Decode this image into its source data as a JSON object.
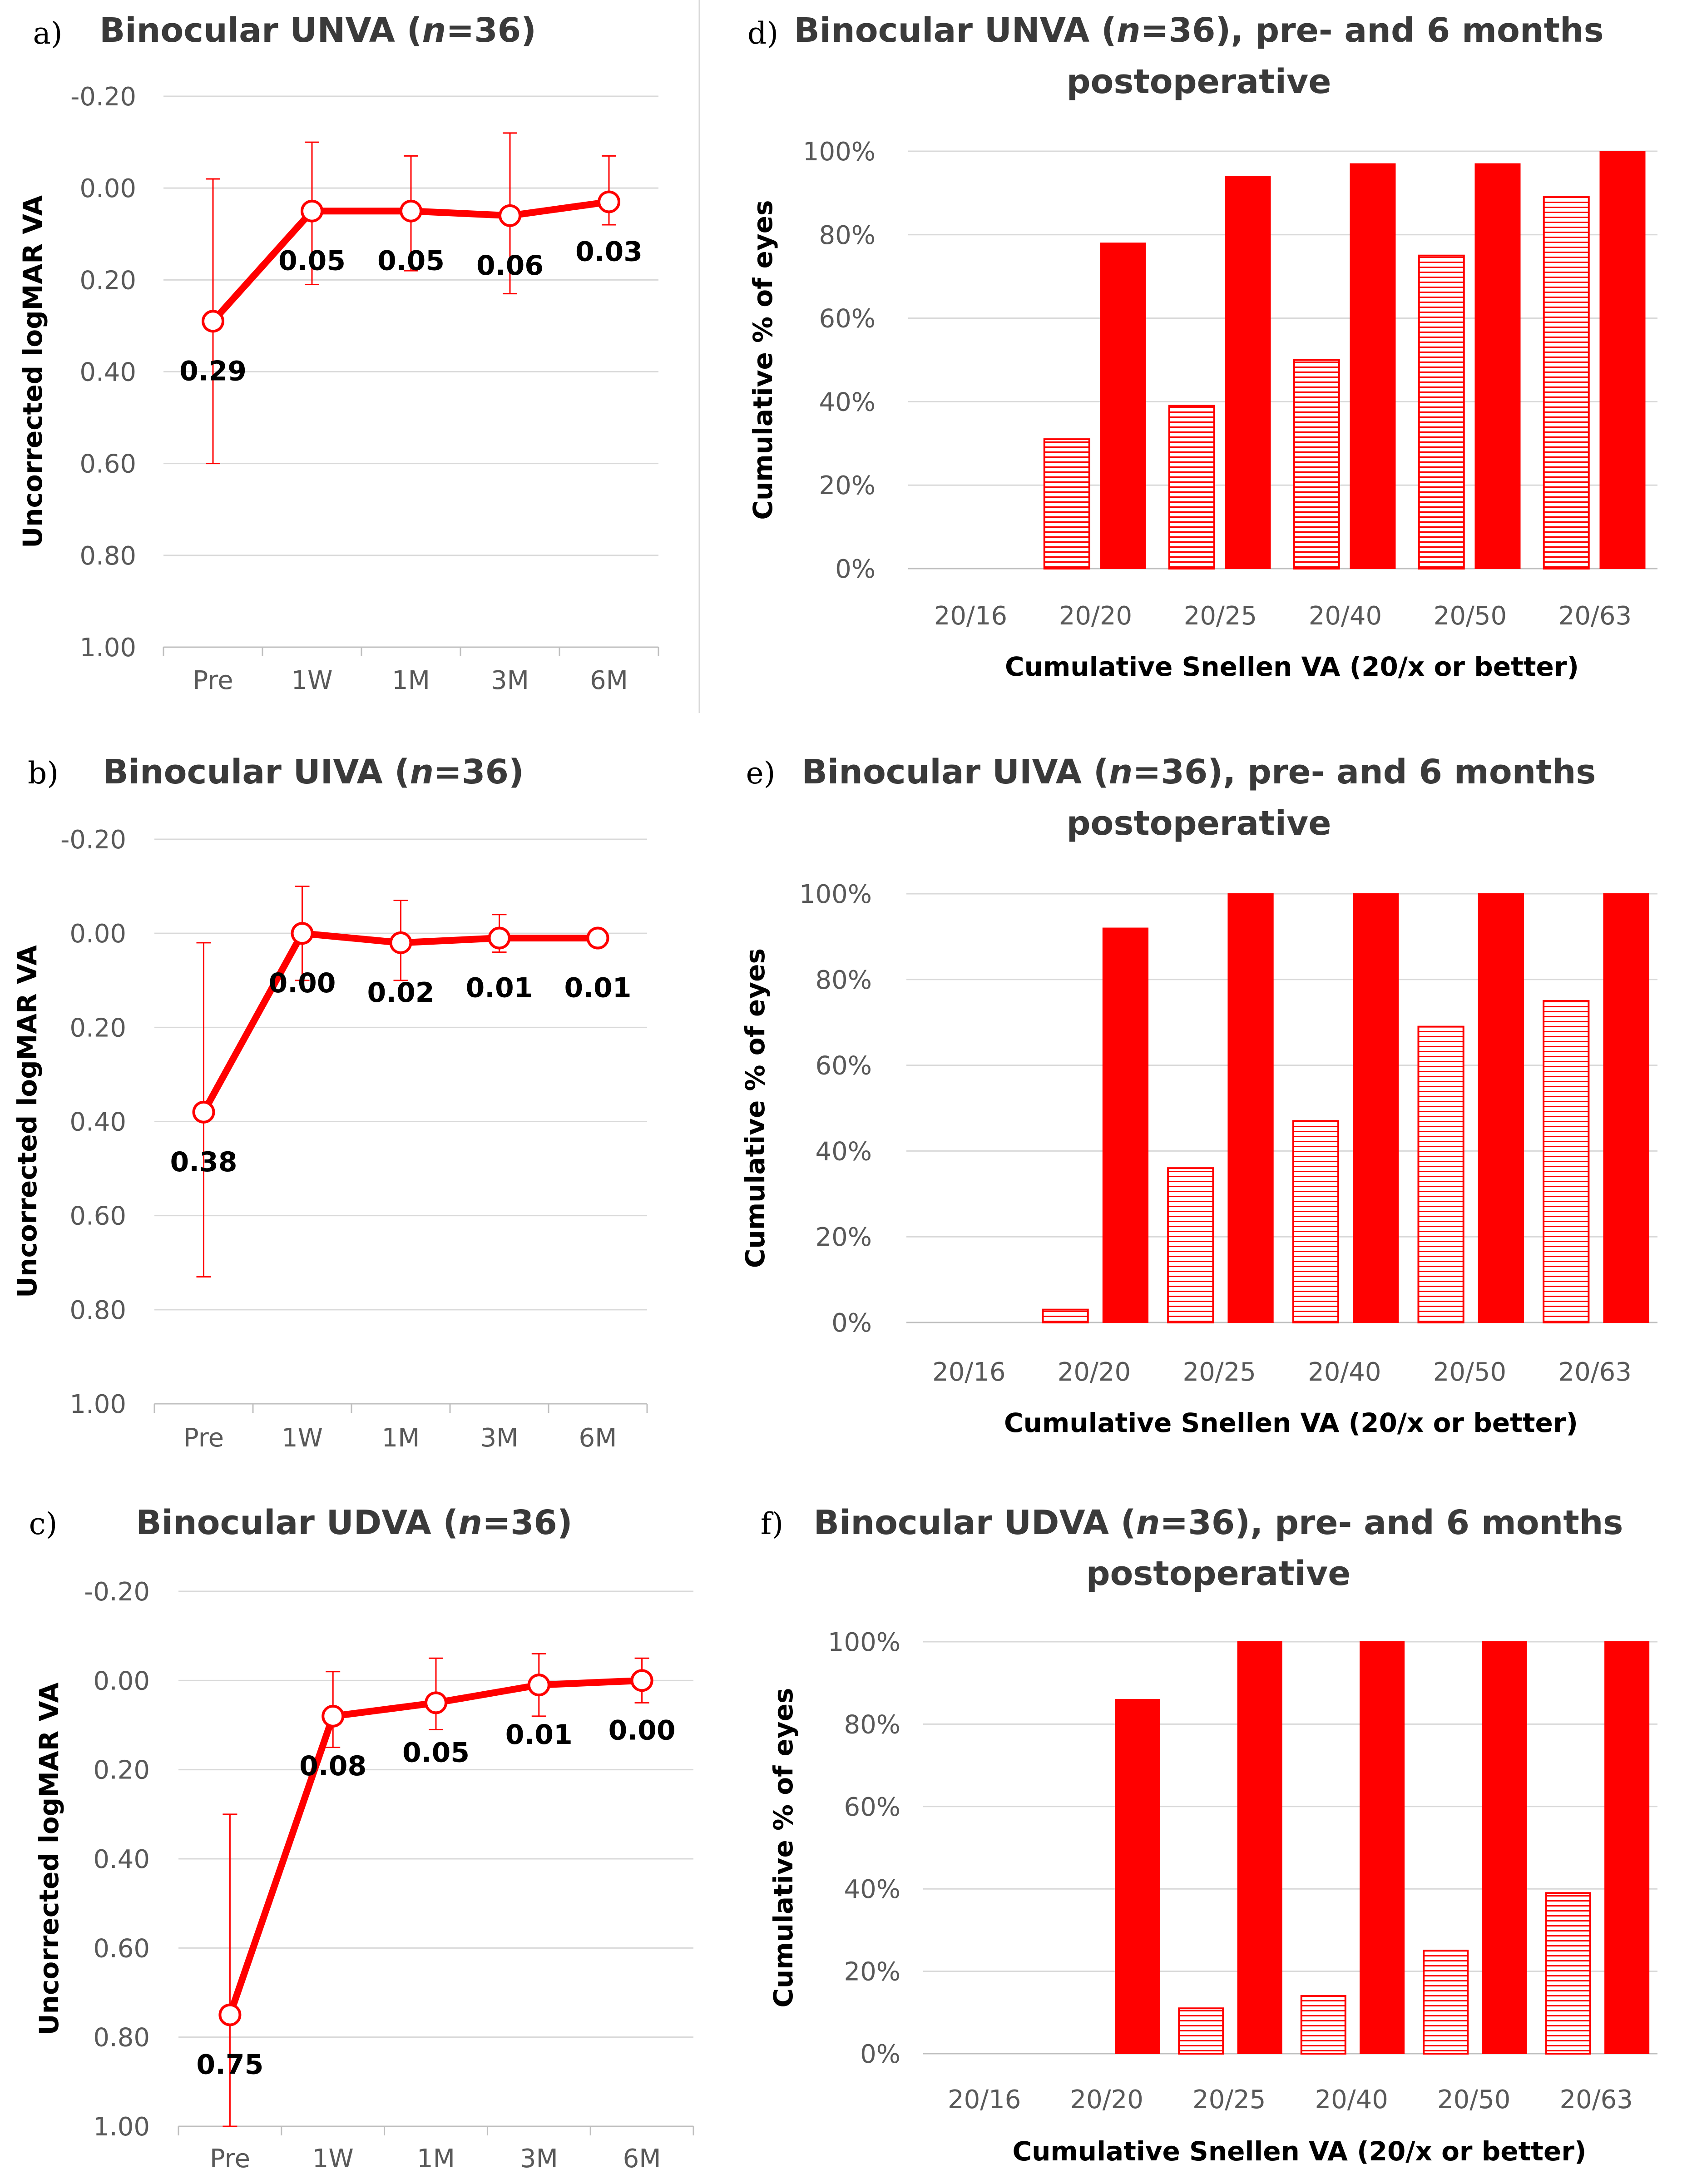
{
  "accent_color": "#ff0000",
  "line_charts": [
    {
      "panel": "a)",
      "title": [
        "Binocular UNVA (",
        "n",
        "=36)"
      ],
      "ylabel": "Uncorrected logMAR VA",
      "yticks": [
        "-0.20",
        "0.00",
        "0.20",
        "0.40",
        "0.60",
        "0.80",
        "1.00"
      ],
      "categories": [
        "Pre",
        "1W",
        "1M",
        "3M",
        "6M"
      ],
      "labels": [
        "0.29",
        "0.05",
        "0.05",
        "0.06",
        "0.03"
      ]
    },
    {
      "panel": "b)",
      "title": [
        "Binocular UIVA (",
        "n",
        "=36)"
      ],
      "ylabel": "Uncorrected logMAR VA",
      "yticks": [
        "-0.20",
        "0.00",
        "0.20",
        "0.40",
        "0.60",
        "0.80",
        "1.00"
      ],
      "categories": [
        "Pre",
        "1W",
        "1M",
        "3M",
        "6M"
      ],
      "labels": [
        "0.38",
        "0.00",
        "0.02",
        "0.01",
        "0.01"
      ]
    },
    {
      "panel": "c)",
      "title": [
        "Binocular UDVA (",
        "n",
        "=36)"
      ],
      "ylabel": "Uncorrected logMAR VA",
      "yticks": [
        "-0.20",
        "0.00",
        "0.20",
        "0.40",
        "0.60",
        "0.80",
        "1.00"
      ],
      "categories": [
        "Pre",
        "1W",
        "1M",
        "3M",
        "6M"
      ],
      "labels": [
        "0.75",
        "0.08",
        "0.05",
        "0.01",
        "0.00"
      ]
    }
  ],
  "bar_charts": [
    {
      "panel": "d)",
      "title_line1": [
        "Binocular UNVA (",
        "n",
        "=36), pre- and 6 months"
      ],
      "title_line2": "postoperative",
      "ylabel": "Cumulative % of eyes",
      "xlabel": "Cumulative Snellen VA (20/x or better)",
      "yticks": [
        "0%",
        "20%",
        "40%",
        "60%",
        "80%",
        "100%"
      ],
      "categories": [
        "20/16",
        "20/20",
        "20/25",
        "20/40",
        "20/50",
        "20/63"
      ]
    },
    {
      "panel": "e)",
      "title_line1": [
        "Binocular UIVA (",
        "n",
        "=36), pre- and 6 months"
      ],
      "title_line2": "postoperative",
      "ylabel": "Cumulative % of eyes",
      "xlabel": "Cumulative Snellen VA (20/x or better)",
      "yticks": [
        "0%",
        "20%",
        "40%",
        "60%",
        "80%",
        "100%"
      ],
      "categories": [
        "20/16",
        "20/20",
        "20/25",
        "20/40",
        "20/50",
        "20/63"
      ]
    },
    {
      "panel": "f)",
      "title_line1": [
        "Binocular UDVA (",
        "n",
        "=36), pre- and 6 months"
      ],
      "title_line2": "postoperative",
      "ylabel": "Cumulative % of eyes",
      "xlabel": "Cumulative Snellen VA (20/x or better)",
      "yticks": [
        "0%",
        "20%",
        "40%",
        "60%",
        "80%",
        "100%"
      ],
      "categories": [
        "20/16",
        "20/20",
        "20/25",
        "20/40",
        "20/50",
        "20/63"
      ]
    }
  ],
  "chart_data": [
    {
      "type": "line",
      "title": "Binocular UNVA (n=36)",
      "ylabel": "Uncorrected logMAR VA",
      "ylim": [
        -0.2,
        1.0
      ],
      "y_inverted": true,
      "categories": [
        "Pre",
        "1W",
        "1M",
        "3M",
        "6M"
      ],
      "values": [
        0.29,
        0.05,
        0.05,
        0.06,
        0.03
      ],
      "error_low": [
        0.6,
        0.21,
        0.18,
        0.23,
        0.08
      ],
      "error_high": [
        -0.02,
        -0.1,
        -0.07,
        -0.12,
        -0.07
      ],
      "grid": true
    },
    {
      "type": "line",
      "title": "Binocular UIVA (n=36)",
      "ylabel": "Uncorrected logMAR VA",
      "ylim": [
        -0.2,
        1.0
      ],
      "y_inverted": true,
      "categories": [
        "Pre",
        "1W",
        "1M",
        "3M",
        "6M"
      ],
      "values": [
        0.38,
        0.0,
        0.02,
        0.01,
        0.01
      ],
      "error_low": [
        0.73,
        0.1,
        0.1,
        0.04,
        0.01
      ],
      "error_high": [
        0.02,
        -0.1,
        -0.07,
        -0.04,
        0.01
      ],
      "grid": true
    },
    {
      "type": "line",
      "title": "Binocular UDVA (n=36)",
      "ylabel": "Uncorrected logMAR VA",
      "ylim": [
        -0.2,
        1.0
      ],
      "y_inverted": true,
      "categories": [
        "Pre",
        "1W",
        "1M",
        "3M",
        "6M"
      ],
      "values": [
        0.75,
        0.08,
        0.05,
        0.01,
        0.0
      ],
      "error_low": [
        1.0,
        0.15,
        0.11,
        0.08,
        0.05
      ],
      "error_high": [
        0.3,
        -0.02,
        -0.05,
        -0.06,
        -0.05
      ],
      "grid": true
    },
    {
      "type": "bar",
      "title": "Binocular UNVA (n=36), pre- and 6 months postoperative",
      "xlabel": "Cumulative Snellen VA (20/x or better)",
      "ylabel": "Cumulative % of eyes",
      "ylim": [
        0,
        100
      ],
      "categories": [
        "20/16",
        "20/20",
        "20/25",
        "20/40",
        "20/50",
        "20/63"
      ],
      "series": [
        {
          "values": [
            0,
            31,
            39,
            50,
            75,
            89
          ],
          "fill": "hatched"
        },
        {
          "values": [
            0,
            78,
            94,
            97,
            97,
            100
          ],
          "fill": "solid"
        }
      ],
      "grid": true
    },
    {
      "type": "bar",
      "title": "Binocular UIVA (n=36), pre- and 6 months postoperative",
      "xlabel": "Cumulative Snellen VA (20/x or better)",
      "ylabel": "Cumulative % of eyes",
      "ylim": [
        0,
        100
      ],
      "categories": [
        "20/16",
        "20/20",
        "20/25",
        "20/40",
        "20/50",
        "20/63"
      ],
      "series": [
        {
          "values": [
            0,
            3,
            36,
            47,
            69,
            75
          ],
          "fill": "hatched"
        },
        {
          "values": [
            0,
            92,
            100,
            100,
            100,
            100
          ],
          "fill": "solid"
        }
      ],
      "grid": true
    },
    {
      "type": "bar",
      "title": "Binocular UDVA (n=36), pre- and 6 months postoperative",
      "xlabel": "Cumulative Snellen VA (20/x or better)",
      "ylabel": "Cumulative % of eyes",
      "ylim": [
        0,
        100
      ],
      "categories": [
        "20/16",
        "20/20",
        "20/25",
        "20/40",
        "20/50",
        "20/63"
      ],
      "series": [
        {
          "values": [
            0,
            0,
            11,
            14,
            25,
            39
          ],
          "fill": "hatched"
        },
        {
          "values": [
            0,
            86,
            100,
            100,
            100,
            100
          ],
          "fill": "solid"
        }
      ],
      "grid": true
    }
  ]
}
